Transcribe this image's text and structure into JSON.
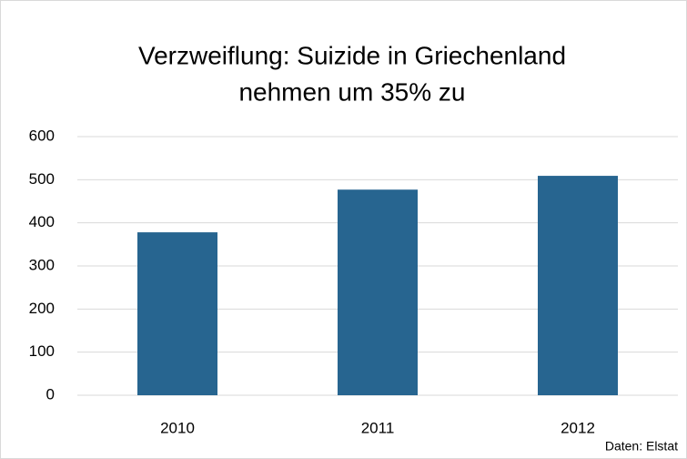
{
  "chart_data": {
    "type": "bar",
    "title": [
      "Verzweiflung: Suizide in Griechenland",
      "nehmen um 35% zu"
    ],
    "categories": [
      "2010",
      "2011",
      "2012"
    ],
    "values": [
      378,
      477,
      509
    ],
    "color": "#276590",
    "ylim": [
      0,
      600
    ],
    "yticks": [
      0,
      100,
      200,
      300,
      400,
      500,
      600
    ],
    "grid": true,
    "source": "Daten: Elstat"
  }
}
